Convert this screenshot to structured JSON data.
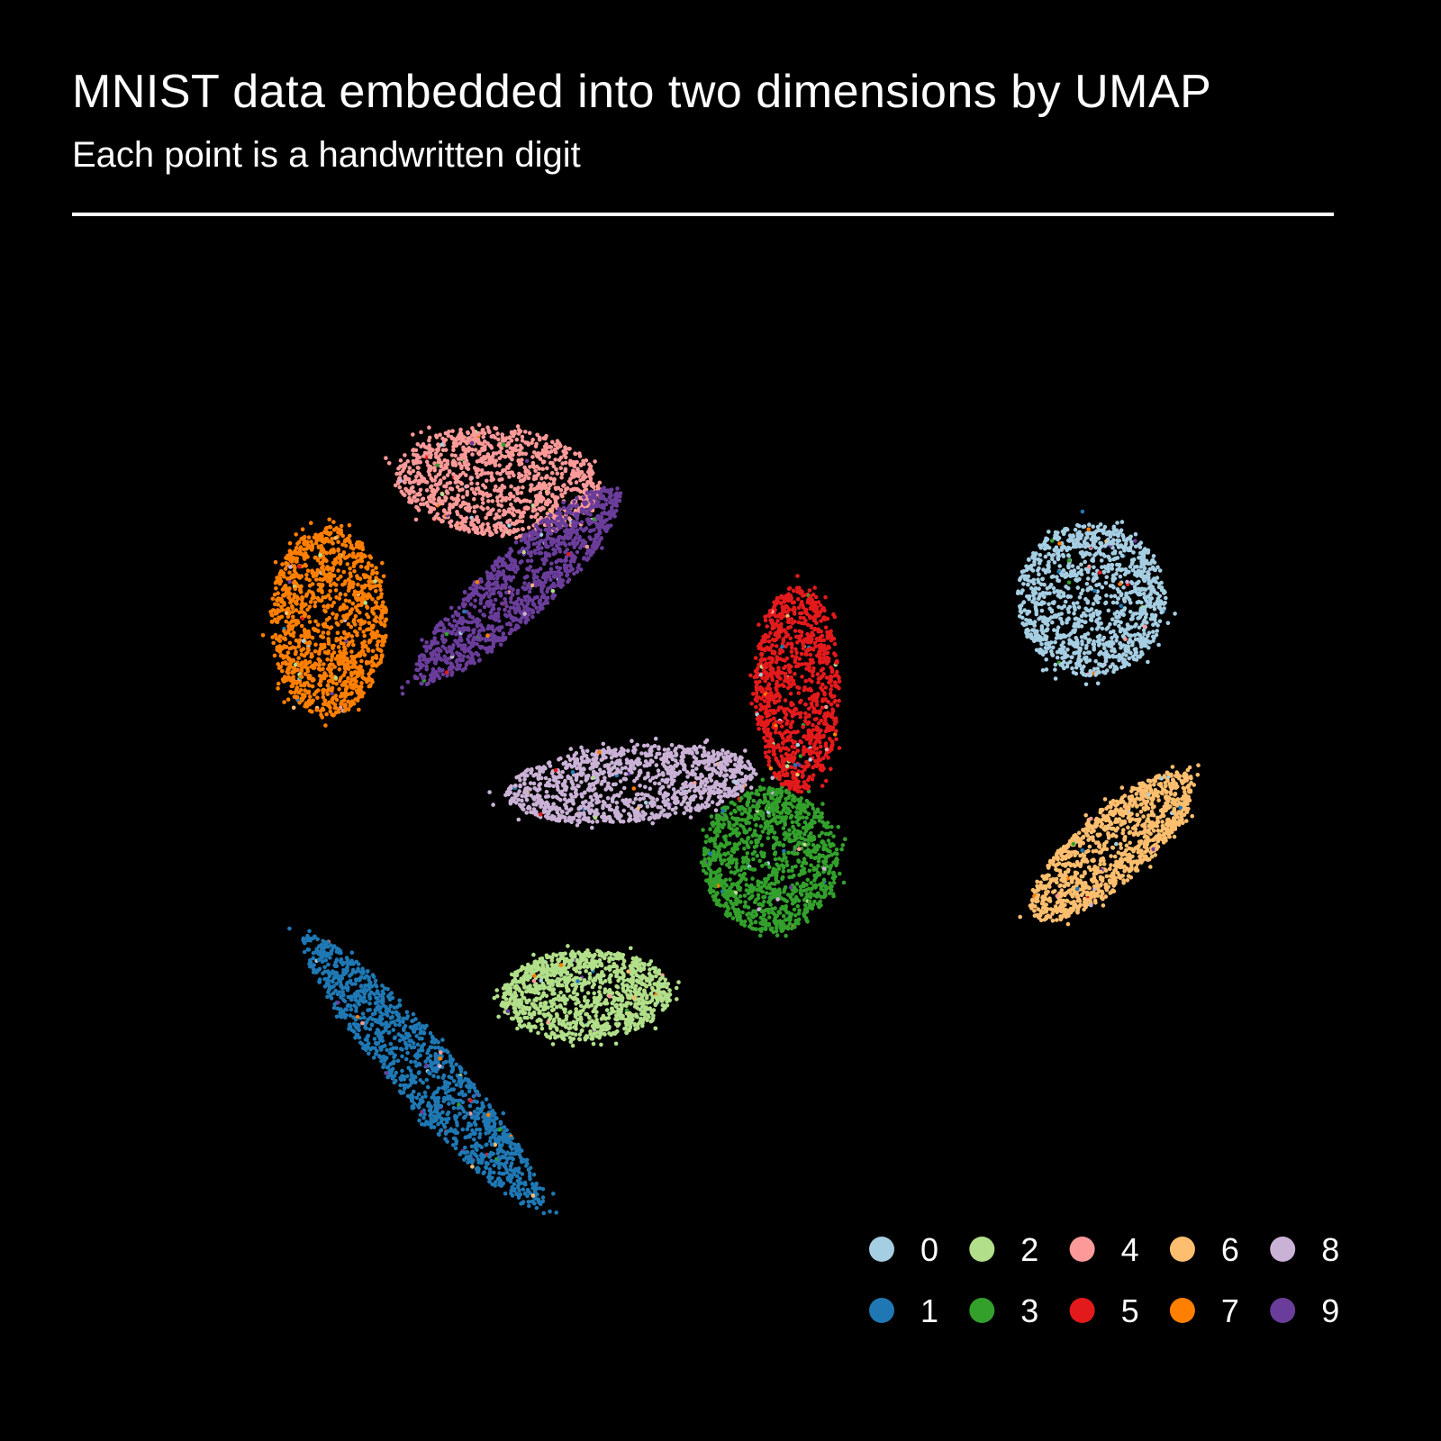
{
  "chart_data": {
    "type": "scatter",
    "title": "MNIST data embedded into two dimensions by UMAP",
    "subtitle": "Each point is a handwritten digit",
    "xlabel": "",
    "ylabel": "",
    "axes_visible": false,
    "grid": false,
    "legend_position": "bottom-right",
    "xlim": [
      -16,
      16
    ],
    "ylim": [
      -16,
      16
    ],
    "clusters": [
      {
        "label": "0",
        "color": "#a6cee3",
        "center": [
          8.24,
          2.7
        ],
        "spread": [
          1.65,
          1.7
        ],
        "angle": 0,
        "count": 1200
      },
      {
        "label": "1",
        "color": "#1f78b4",
        "center": [
          -6.6,
          -7.8
        ],
        "spread": [
          4.0,
          0.7
        ],
        "angle": -49,
        "count": 1300
      },
      {
        "label": "2",
        "color": "#b2df8a",
        "center": [
          -3.0,
          -6.1
        ],
        "spread": [
          1.9,
          1.0
        ],
        "angle": 2,
        "count": 1150
      },
      {
        "label": "3",
        "color": "#33a02c",
        "center": [
          1.1,
          -3.1
        ],
        "spread": [
          1.5,
          1.6
        ],
        "angle": 0,
        "count": 1200
      },
      {
        "label": "4",
        "color": "#fb9a99",
        "center": [
          -4.9,
          5.3
        ],
        "spread": [
          2.3,
          1.2
        ],
        "angle": -5,
        "count": 1150
      },
      {
        "label": "5",
        "color": "#e31a1c",
        "center": [
          1.7,
          0.7
        ],
        "spread": [
          0.95,
          2.3
        ],
        "angle": 0,
        "count": 1050
      },
      {
        "label": "6",
        "color": "#fdbf6f",
        "center": [
          8.7,
          -2.8
        ],
        "spread": [
          2.35,
          0.8
        ],
        "angle": 41.5,
        "count": 1150
      },
      {
        "label": "7",
        "color": "#ff7f00",
        "center": [
          -8.7,
          2.2
        ],
        "spread": [
          1.3,
          2.1
        ],
        "angle": 0,
        "count": 1250
      },
      {
        "label": "8",
        "color": "#cab2d6",
        "center": [
          -2.0,
          -1.4
        ],
        "spread": [
          2.8,
          0.85
        ],
        "angle": 5,
        "count": 1150
      },
      {
        "label": "9",
        "color": "#6a3d9a",
        "center": [
          -4.5,
          3.0
        ],
        "spread": [
          3.1,
          0.75
        ],
        "angle": 43.7,
        "count": 1200
      }
    ],
    "legend": [
      {
        "label": "0",
        "color": "#a6cee3"
      },
      {
        "label": "1",
        "color": "#1f78b4"
      },
      {
        "label": "2",
        "color": "#b2df8a"
      },
      {
        "label": "3",
        "color": "#33a02c"
      },
      {
        "label": "4",
        "color": "#fb9a99"
      },
      {
        "label": "5",
        "color": "#e31a1c"
      },
      {
        "label": "6",
        "color": "#fdbf6f"
      },
      {
        "label": "7",
        "color": "#ff7f00"
      },
      {
        "label": "8",
        "color": "#cab2d6"
      },
      {
        "label": "9",
        "color": "#6a3d9a"
      }
    ]
  }
}
